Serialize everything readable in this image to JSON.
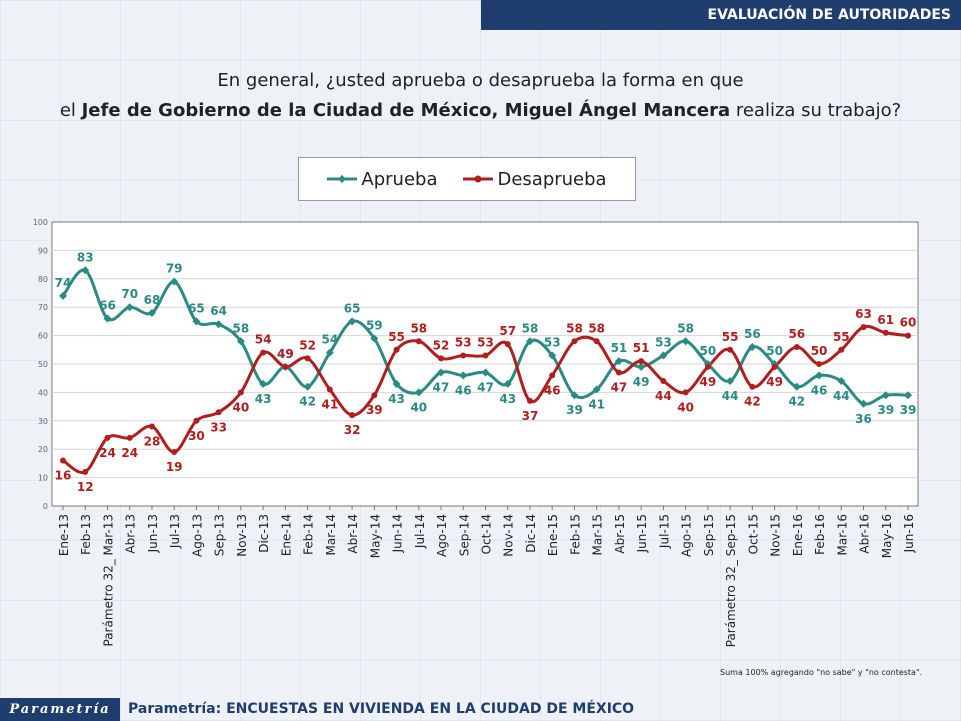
{
  "header": {
    "title": "EVALUACIÓN DE AUTORIDADES"
  },
  "question": {
    "line1": "En general, ¿usted aprueba o desaprueba la forma en que",
    "line2_prefix": "el ",
    "line2_bold": "Jefe de Gobierno de la Ciudad de México, Miguel Ángel Mancera",
    "line2_suffix": " realiza su trabajo?"
  },
  "footnote": "Suma 100%  agregando \"no sabe\" y \"no contesta\".",
  "footer": {
    "logo": "Parametría",
    "text": "Parametría: ENCUESTAS EN VIVIENDA EN LA CIUDAD DE MÉXICO"
  },
  "colors": {
    "aprueba": "#2b8a84",
    "desaprueba": "#b01e1e",
    "header_bg": "#1f3e6e"
  },
  "chart_data": {
    "type": "line",
    "categories": [
      "Ene-13",
      "Feb-13",
      "Parámetro 32_ Mar-13",
      "Abr-13",
      "Jun-13",
      "Jul-13",
      "Ago-13",
      "Sep-13",
      "Nov-13",
      "Dic-13",
      "Ene-14",
      "Feb-14",
      "Mar-14",
      "Abr-14",
      "May-14",
      "Jun-14",
      "Jul-14",
      "Ago-14",
      "Sep-14",
      "Oct-14",
      "Nov-14",
      "Dic-14",
      "Ene-15",
      "Feb-15",
      "Mar-15",
      "Abr-15",
      "Jun-15",
      "Jul-15",
      "Ago-15",
      "Sep-15",
      "Parámetro 32_ Sep-15",
      "Oct-15",
      "Nov-15",
      "Ene-16",
      "Feb-16",
      "Mar-16",
      "Abr-16",
      "May-16",
      "Jun-16"
    ],
    "series": [
      {
        "name": "Aprueba",
        "values": [
          74,
          83,
          66,
          70,
          68,
          79,
          65,
          64,
          58,
          43,
          49,
          42,
          54,
          65,
          59,
          43,
          40,
          47,
          46,
          47,
          43,
          58,
          53,
          39,
          41,
          51,
          49,
          53,
          58,
          50,
          44,
          56,
          50,
          42,
          46,
          44,
          36,
          39,
          39
        ]
      },
      {
        "name": "Desaprueba",
        "values": [
          16,
          12,
          24,
          24,
          28,
          19,
          30,
          33,
          40,
          54,
          49,
          52,
          41,
          32,
          39,
          55,
          58,
          52,
          53,
          53,
          57,
          37,
          46,
          58,
          58,
          47,
          51,
          44,
          40,
          49,
          55,
          42,
          49,
          56,
          50,
          55,
          63,
          61,
          60
        ]
      }
    ],
    "ylim": [
      0,
      100
    ],
    "yticks": [
      "0",
      "10",
      "20",
      "30",
      "40",
      "50",
      "60",
      "70",
      "80",
      "90",
      "100"
    ],
    "grid": true,
    "legend_position": "top"
  }
}
